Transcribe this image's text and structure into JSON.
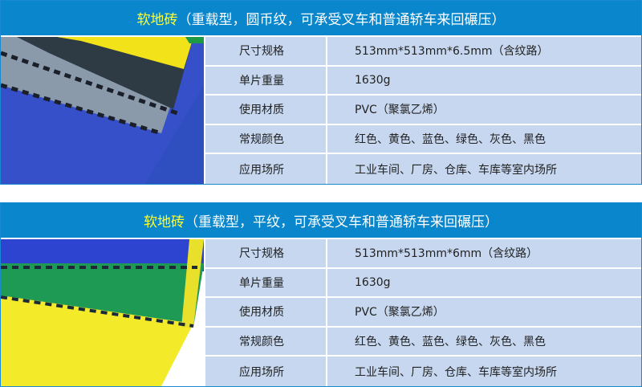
{
  "tables": [
    {
      "title_highlight": "软地砖",
      "title_rest": "（重载型，圆币纹，可承受叉车和普通轿车来回碾压）",
      "image": "floor-tile-coin-pattern-photo",
      "rows": [
        {
          "label": "尺寸规格",
          "value": "513mm*513mm*6.5mm（含纹路）"
        },
        {
          "label": "单片重量",
          "value": "1630g"
        },
        {
          "label": "使用材质",
          "value": "PVC（聚氯乙烯）"
        },
        {
          "label": "常规颜色",
          "value": "红色、黄色、蓝色、绿色、灰色、黑色"
        },
        {
          "label": "应用场所",
          "value": "工业车间、厂房、仓库、车库等室内场所"
        }
      ]
    },
    {
      "title_highlight": "软地砖",
      "title_rest": "（重载型，平纹，可承受叉车和普通轿车来回碾压）",
      "image": "floor-tile-flat-pattern-photo",
      "rows": [
        {
          "label": "尺寸规格",
          "value": "513mm*513mm*6mm（含纹路）"
        },
        {
          "label": "单片重量",
          "value": "1630g"
        },
        {
          "label": "使用材质",
          "value": "PVC（聚氯乙烯）"
        },
        {
          "label": "常规颜色",
          "value": "红色、黄色、蓝色、绿色、灰色、黑色"
        },
        {
          "label": "应用场所",
          "value": "工业车间、厂房、仓库、车库等室内场所"
        }
      ]
    }
  ],
  "colors": {
    "header": "#0a86cc",
    "highlight": "#ffff33",
    "row": "#c6d7ef"
  }
}
